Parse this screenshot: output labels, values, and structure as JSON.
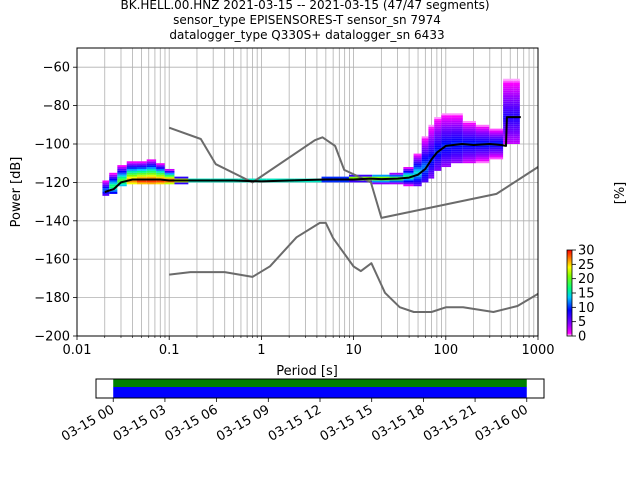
{
  "title_lines": [
    "BK.HELL.00.HNZ   2021-03-15 -- 2021-03-15  (47/47 segments)",
    "sensor_type EPISENSORES-T sensor_sn 7974",
    "datalogger_type Q330S+ datalogger_sn 6433"
  ],
  "colors": {
    "noise_model": "#6b6b6b",
    "mean_curve": "#000000",
    "grid": "#b0b0b0",
    "coverage_data": "#0000ff",
    "coverage_gaps": "#008000"
  },
  "chart_data": [
    {
      "type": "heatmap",
      "title": "BK.HELL.00.HNZ   2021-03-15 -- 2021-03-15  (47/47 segments)",
      "xlabel": "Period [s]",
      "ylabel": "Power [dB]",
      "xscale": "log",
      "xlim": [
        0.01,
        1000
      ],
      "ylim": [
        -200,
        -50
      ],
      "xticks": [
        {
          "value": 0.01,
          "label": "0.01"
        },
        {
          "value": 0.1,
          "label": "0.1"
        },
        {
          "value": 1,
          "label": "1"
        },
        {
          "value": 10,
          "label": "10"
        },
        {
          "value": 100,
          "label": "100"
        },
        {
          "value": 1000,
          "label": "1000"
        }
      ],
      "yticks": [
        {
          "value": -60,
          "label": "−60"
        },
        {
          "value": -80,
          "label": "−80"
        },
        {
          "value": -100,
          "label": "−100"
        },
        {
          "value": -120,
          "label": "−120"
        },
        {
          "value": -140,
          "label": "−140"
        },
        {
          "value": -160,
          "label": "−160"
        },
        {
          "value": -180,
          "label": "−180"
        },
        {
          "value": -200,
          "label": "−200"
        }
      ],
      "grid": true,
      "colorbar": {
        "label": "[%]",
        "range": [
          0,
          30
        ],
        "ticks": [
          {
            "value": 0,
            "label": "0"
          },
          {
            "value": 5,
            "label": "5"
          },
          {
            "value": 10,
            "label": "10"
          },
          {
            "value": 15,
            "label": "15"
          },
          {
            "value": 20,
            "label": "20"
          },
          {
            "value": 25,
            "label": "25"
          },
          {
            "value": 30,
            "label": "30"
          }
        ]
      },
      "noise_model_high": {
        "x": [
          0.1,
          0.22,
          0.32,
          0.8,
          3.8,
          4.6,
          6.3,
          7.9,
          15.4,
          20,
          354.8,
          1000
        ],
        "y": [
          -91.5,
          -97.4,
          -110.5,
          -120,
          -98,
          -96.5,
          -101,
          -113.5,
          -120,
          -138.5,
          -126,
          -112
        ]
      },
      "noise_model_low": {
        "x": [
          0.1,
          0.17,
          0.4,
          0.8,
          1.24,
          2.4,
          4.3,
          5,
          6,
          10,
          12,
          15.6,
          21.9,
          31.6,
          45,
          70,
          101,
          154,
          328,
          600,
          1000
        ],
        "y": [
          -168,
          -166.7,
          -166.7,
          -169.2,
          -163.7,
          -148.6,
          -141.1,
          -141.1,
          -149,
          -163.8,
          -166.2,
          -162.1,
          -177.5,
          -185,
          -187.5,
          -187.5,
          -185,
          -185,
          -187.5,
          -184.4,
          -178
        ]
      },
      "mean_curve": {
        "x": [
          0.02,
          0.025,
          0.03,
          0.04,
          0.06,
          0.08,
          0.1,
          0.2,
          0.5,
          1,
          2,
          5,
          10,
          15,
          20,
          30,
          40,
          50,
          60,
          70,
          80,
          100,
          150,
          200,
          300,
          400,
          450,
          460,
          500,
          550,
          600,
          650
        ],
        "y": [
          -125,
          -123.5,
          -120,
          -118.5,
          -118.5,
          -118.5,
          -119,
          -119,
          -119,
          -119.5,
          -119,
          -118.5,
          -118.5,
          -118,
          -118.3,
          -118,
          -117.5,
          -116,
          -113,
          -108,
          -104.5,
          -101,
          -100,
          -100.5,
          -100,
          -100.5,
          -101,
          -86,
          -86,
          -86,
          -86,
          -86
        ]
      },
      "density_columns": [
        {
          "period": 0.02,
          "ymin": -127,
          "ymax": -119,
          "peak": -124,
          "level": 12
        },
        {
          "period": 0.025,
          "ymin": -126,
          "ymax": -115,
          "peak": -122,
          "level": 18
        },
        {
          "period": 0.03,
          "ymin": -122,
          "ymax": -111,
          "peak": -119,
          "level": 20
        },
        {
          "period": 0.04,
          "ymin": -121,
          "ymax": -109,
          "peak": -119,
          "level": 28
        },
        {
          "period": 0.05,
          "ymin": -121,
          "ymax": -109,
          "peak": -119,
          "level": 30
        },
        {
          "period": 0.065,
          "ymin": -121,
          "ymax": -108,
          "peak": -119,
          "level": 30
        },
        {
          "period": 0.08,
          "ymin": -121,
          "ymax": -110,
          "peak": -119,
          "level": 30
        },
        {
          "period": 0.1,
          "ymin": -121,
          "ymax": -113,
          "peak": -119,
          "level": 30
        },
        {
          "period": 0.13,
          "ymin": -121,
          "ymax": -117,
          "peak": -119,
          "level": 30
        },
        {
          "period": 0.2,
          "ymin": -120,
          "ymax": -118,
          "peak": -119,
          "level": 30
        },
        {
          "period": 0.4,
          "ymin": -120,
          "ymax": -118,
          "peak": -119,
          "level": 30
        },
        {
          "period": 0.8,
          "ymin": -120,
          "ymax": -118,
          "peak": -119,
          "level": 30
        },
        {
          "period": 1.6,
          "ymin": -120,
          "ymax": -118,
          "peak": -119,
          "level": 30
        },
        {
          "period": 3.2,
          "ymin": -120,
          "ymax": -118,
          "peak": -119,
          "level": 30
        },
        {
          "period": 6.3,
          "ymin": -120,
          "ymax": -117,
          "peak": -118.5,
          "level": 30
        },
        {
          "period": 12.6,
          "ymin": -120,
          "ymax": -116,
          "peak": -118,
          "level": 28
        },
        {
          "period": 20,
          "ymin": -121,
          "ymax": -116,
          "peak": -118,
          "level": 25
        },
        {
          "period": 30,
          "ymin": -121,
          "ymax": -115,
          "peak": -118,
          "level": 22
        },
        {
          "period": 40,
          "ymin": -122,
          "ymax": -112,
          "peak": -117,
          "level": 18
        },
        {
          "period": 50,
          "ymin": -122,
          "ymax": -105,
          "peak": -115,
          "level": 15
        },
        {
          "period": 60,
          "ymin": -120,
          "ymax": -96,
          "peak": -112,
          "level": 12
        },
        {
          "period": 70,
          "ymin": -118,
          "ymax": -90,
          "peak": -108,
          "level": 10
        },
        {
          "period": 80,
          "ymin": -114,
          "ymax": -86,
          "peak": -104,
          "level": 10
        },
        {
          "period": 100,
          "ymin": -112,
          "ymax": -84,
          "peak": -101,
          "level": 10
        },
        {
          "period": 130,
          "ymin": -110,
          "ymax": -84,
          "peak": -100,
          "level": 10
        },
        {
          "period": 180,
          "ymin": -110,
          "ymax": -88,
          "peak": -100,
          "level": 10
        },
        {
          "period": 250,
          "ymin": -110,
          "ymax": -90,
          "peak": -100,
          "level": 10
        },
        {
          "period": 350,
          "ymin": -108,
          "ymax": -92,
          "peak": -100,
          "level": 10
        },
        {
          "period": 500,
          "ymin": -100,
          "ymax": -66,
          "peak": -86,
          "level": 8
        },
        {
          "period": 600,
          "ymin": -100,
          "ymax": -66,
          "peak": -86,
          "level": 8
        }
      ]
    },
    {
      "type": "bar",
      "title": "",
      "xlabel": "",
      "ylabel": "",
      "x_range_hours": [
        -1,
        25
      ],
      "segments": [
        {
          "name": "data",
          "start_hour": 0,
          "end_hour": 24
        },
        {
          "name": "gaps",
          "start_hour": 0,
          "end_hour": 24
        }
      ],
      "xticks": [
        {
          "value": 0,
          "label": "03-15 00"
        },
        {
          "value": 3,
          "label": "03-15 03"
        },
        {
          "value": 6,
          "label": "03-15 06"
        },
        {
          "value": 9,
          "label": "03-15 09"
        },
        {
          "value": 12,
          "label": "03-15 12"
        },
        {
          "value": 15,
          "label": "03-15 15"
        },
        {
          "value": 18,
          "label": "03-15 18"
        },
        {
          "value": 21,
          "label": "03-15 21"
        },
        {
          "value": 24,
          "label": "03-16 00"
        }
      ]
    }
  ]
}
